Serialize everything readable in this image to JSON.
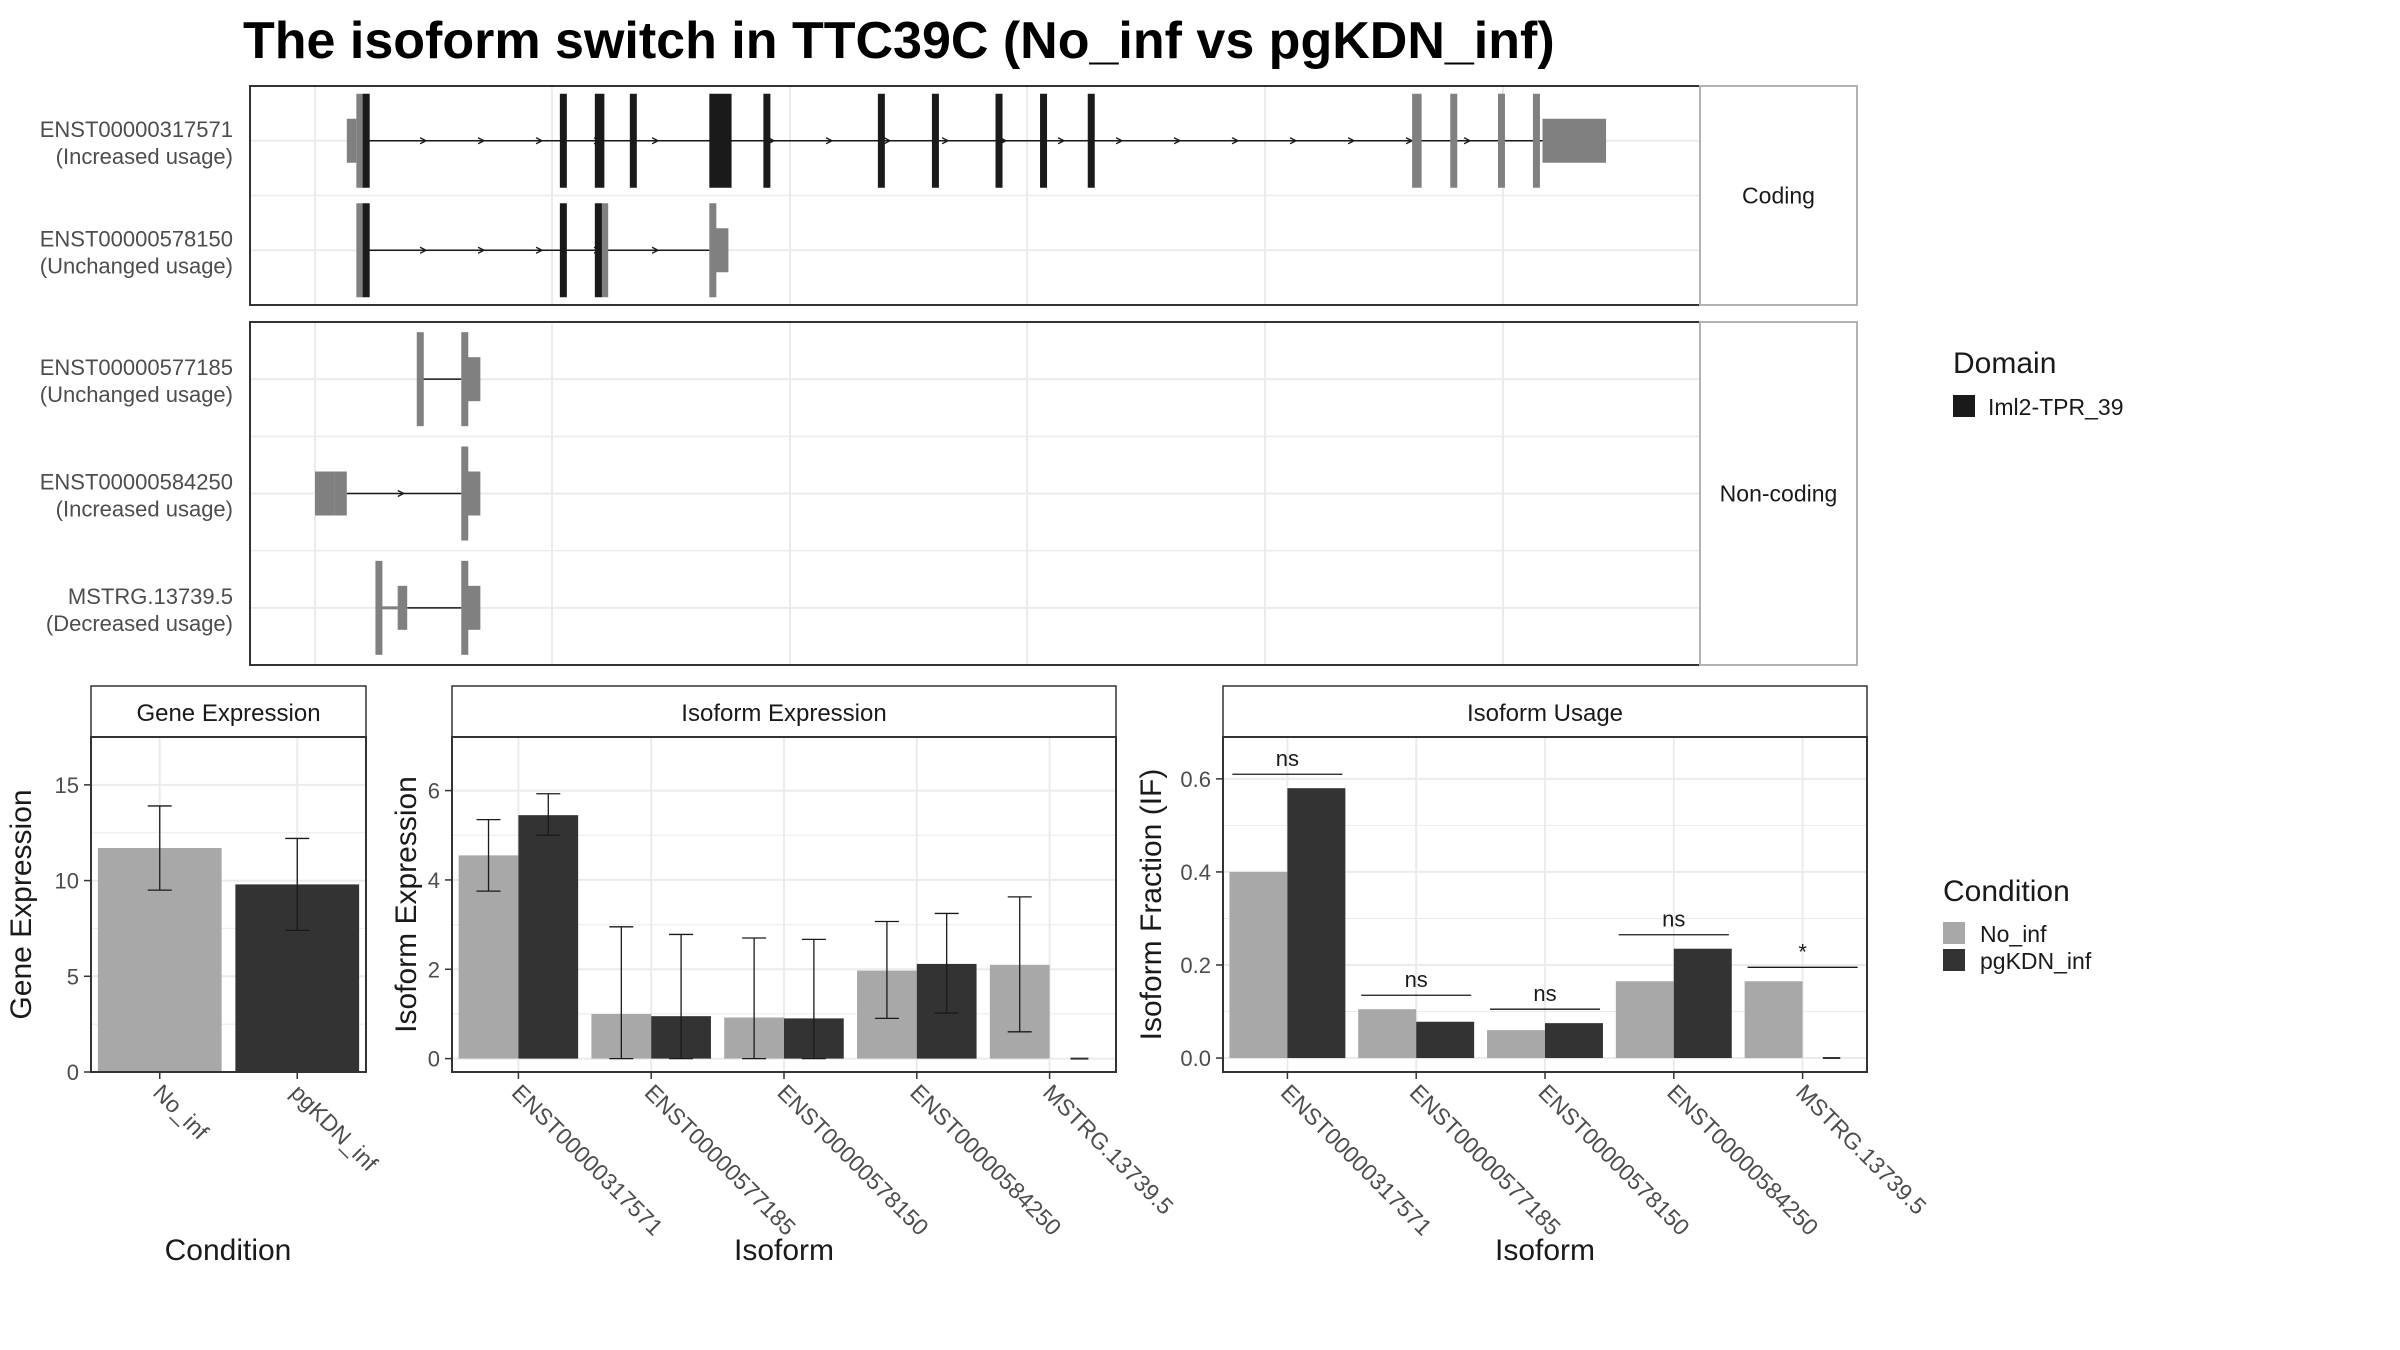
{
  "title": "The isoform switch in TTC39C (No_inf vs pgKDN_inf)",
  "colors": {
    "cds": "#1a1a1a",
    "utr": "#808080",
    "no_inf": "#a8a8a8",
    "pgkdn_inf": "#333333",
    "grid": "#ebebeb",
    "panel_border": "#333333",
    "strip_border": "#b3b3b3"
  },
  "structure": {
    "facets": [
      {
        "label": "Coding",
        "transcripts": [
          {
            "id": "ENST00000317571",
            "usage": "(Increased usage)",
            "utr": [
              [
                10,
                13
              ],
              [
                13,
                15
              ],
              [
                345,
                348
              ],
              [
                357,
                359
              ],
              [
                372,
                373
              ],
              [
                383,
                385
              ],
              [
                386,
                406
              ]
            ],
            "cds": [
              [
                15,
                17
              ],
              [
                77,
                78
              ],
              [
                88,
                91
              ],
              [
                99,
                101
              ],
              [
                124,
                131
              ],
              [
                141,
                143
              ],
              [
                177,
                179
              ],
              [
                194,
                196
              ],
              [
                214,
                216
              ],
              [
                228,
                230
              ],
              [
                243,
                245
              ]
            ],
            "thin": [],
            "line": [
              17,
              386
            ]
          },
          {
            "id": "ENST00000578150",
            "usage": "(Unchanged usage)",
            "utr": [
              [
                13,
                15
              ],
              [
                90,
                92
              ],
              [
                124,
                126
              ],
              [
                126,
                130
              ]
            ],
            "cds": [
              [
                15,
                17
              ],
              [
                77,
                78
              ],
              [
                88,
                90
              ]
            ],
            "thin": [],
            "line": [
              17,
              124
            ]
          }
        ]
      },
      {
        "label": "Non-coding",
        "transcripts": [
          {
            "id": "ENST00000577185",
            "usage": "(Unchanged usage)",
            "utr": [
              [
                32,
                34
              ],
              [
                46,
                48
              ],
              [
                48,
                52
              ]
            ],
            "cds": [],
            "thin": [],
            "line": [
              34,
              46
            ]
          },
          {
            "id": "ENST00000584250",
            "usage": "(Increased usage)",
            "utr": [
              [
                0,
                6
              ],
              [
                6,
                10
              ],
              [
                46,
                48
              ],
              [
                48,
                52
              ]
            ],
            "cds": [],
            "thin": [],
            "line": [
              10,
              46
            ]
          },
          {
            "id": "MSTRG.13739.5",
            "usage": "(Decreased usage)",
            "utr": [
              [
                19,
                20
              ],
              [
                26,
                29
              ],
              [
                46,
                48
              ],
              [
                48,
                52
              ]
            ],
            "cds": [],
            "thin": [
              [
                20,
                26
              ]
            ],
            "line": [
              29,
              46
            ]
          }
        ]
      }
    ],
    "legend": {
      "title": "Domain",
      "items": [
        {
          "label": "Iml2-TPR_39",
          "color": "#1a1a1a"
        }
      ]
    }
  },
  "chart_data": [
    {
      "type": "bar",
      "title": "Gene Expression",
      "xlabel": "Condition",
      "ylabel": "Gene Expression",
      "categories": [
        "No_inf",
        "pgKDN_inf"
      ],
      "values": [
        11.7,
        9.8
      ],
      "error_low": [
        9.5,
        7.4
      ],
      "error_high": [
        13.9,
        12.2
      ],
      "ylim": [
        0,
        17.5
      ],
      "yticks": [
        0,
        5,
        10,
        15
      ]
    },
    {
      "type": "bar",
      "title": "Isoform Expression",
      "xlabel": "Isoform",
      "ylabel": "Isoform Expression",
      "categories": [
        "ENST00000317571",
        "ENST00000577185",
        "ENST00000578150",
        "ENST00000584250",
        "MSTRG.13739.5"
      ],
      "series": [
        {
          "name": "No_inf",
          "values": [
            4.55,
            1.0,
            0.92,
            1.97,
            2.1
          ],
          "error_low": [
            3.75,
            0.0,
            0.0,
            0.9,
            0.6
          ],
          "error_high": [
            5.35,
            2.95,
            2.7,
            3.07,
            3.62
          ]
        },
        {
          "name": "pgKDN_inf",
          "values": [
            5.45,
            0.95,
            0.9,
            2.12,
            0.0
          ],
          "error_low": [
            5.0,
            0.0,
            0.0,
            1.02,
            0.0
          ],
          "error_high": [
            5.93,
            2.78,
            2.67,
            3.25,
            0.0
          ]
        }
      ],
      "ylim": [
        -0.3,
        7.2
      ],
      "yticks": [
        0,
        2,
        4,
        6
      ]
    },
    {
      "type": "bar",
      "title": "Isoform Usage",
      "xlabel": "Isoform",
      "ylabel": "Isoform Fraction (IF)",
      "categories": [
        "ENST00000317571",
        "ENST00000577185",
        "ENST00000578150",
        "ENST00000584250",
        "MSTRG.13739.5"
      ],
      "series": [
        {
          "name": "No_inf",
          "values": [
            0.4,
            0.105,
            0.06,
            0.165,
            0.165
          ]
        },
        {
          "name": "pgKDN_inf",
          "values": [
            0.58,
            0.078,
            0.075,
            0.235,
            0.0
          ]
        }
      ],
      "significance": [
        {
          "label": "ns",
          "y": 0.61
        },
        {
          "label": "ns",
          "y": 0.135
        },
        {
          "label": "ns",
          "y": 0.105
        },
        {
          "label": "ns",
          "y": 0.265
        },
        {
          "label": "*",
          "y": 0.195
        }
      ],
      "ylim": [
        -0.03,
        0.69
      ],
      "yticks": [
        0.0,
        0.2,
        0.4,
        0.6
      ],
      "ytick_labels": [
        "0.0",
        "0.2",
        "0.4",
        "0.6"
      ]
    }
  ],
  "legend": {
    "title": "Condition",
    "items": [
      {
        "label": "No_inf",
        "color": "#a8a8a8"
      },
      {
        "label": "pgKDN_inf",
        "color": "#333333"
      }
    ]
  }
}
